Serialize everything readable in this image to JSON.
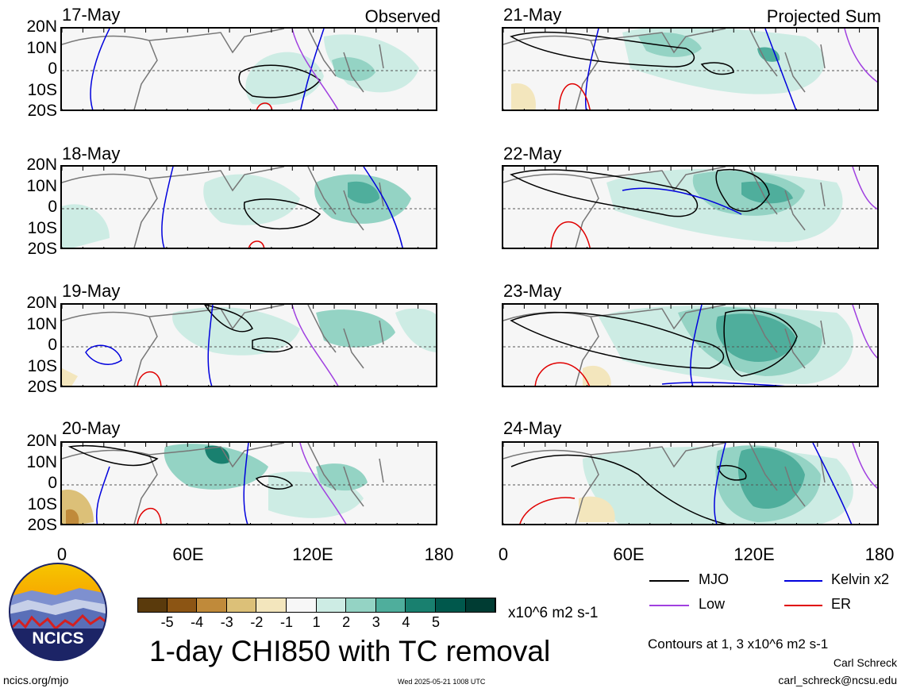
{
  "panels": {
    "left": [
      {
        "date": "17-May",
        "tag": "Observed"
      },
      {
        "date": "18-May",
        "tag": ""
      },
      {
        "date": "19-May",
        "tag": ""
      },
      {
        "date": "20-May",
        "tag": ""
      }
    ],
    "right": [
      {
        "date": "21-May",
        "tag": "Projected Sum"
      },
      {
        "date": "22-May",
        "tag": ""
      },
      {
        "date": "23-May",
        "tag": ""
      },
      {
        "date": "24-May",
        "tag": ""
      }
    ]
  },
  "axes": {
    "lat_labels": [
      "20N",
      "10N",
      "0",
      "10S",
      "20S"
    ],
    "lon_labels": [
      "0",
      "60E",
      "120E",
      "180"
    ]
  },
  "colorbar": {
    "labels": [
      "-5",
      "-4",
      "-3",
      "-2",
      "-1",
      "1",
      "2",
      "3",
      "4",
      "5"
    ],
    "colors": [
      "#5a3a0c",
      "#8c5514",
      "#c08a3a",
      "#dcc078",
      "#f3e6bd",
      "#f7f7f7",
      "#cdece4",
      "#94d3c4",
      "#4fae9c",
      "#19806f",
      "#00584c",
      "#003c33"
    ],
    "units": "x10^6 m2 s-1"
  },
  "title": "1-day CHI850 with TC removal",
  "legend": {
    "items": [
      {
        "label": "MJO",
        "color": "#000000"
      },
      {
        "label": "Kelvin x2",
        "color": "#0000dd"
      },
      {
        "label": "Low",
        "color": "#a040e0"
      },
      {
        "label": "ER",
        "color": "#e00000"
      }
    ],
    "note": "Contours at 1, 3 x10^6 m2 s-1"
  },
  "credits": {
    "author": "Carl Schreck",
    "email": "carl_schreck@ncsu.edu",
    "url": "ncics.org/mjo",
    "timestamp": "Wed 2025-05-21 1008 UTC",
    "logo_text": "NCICS"
  }
}
